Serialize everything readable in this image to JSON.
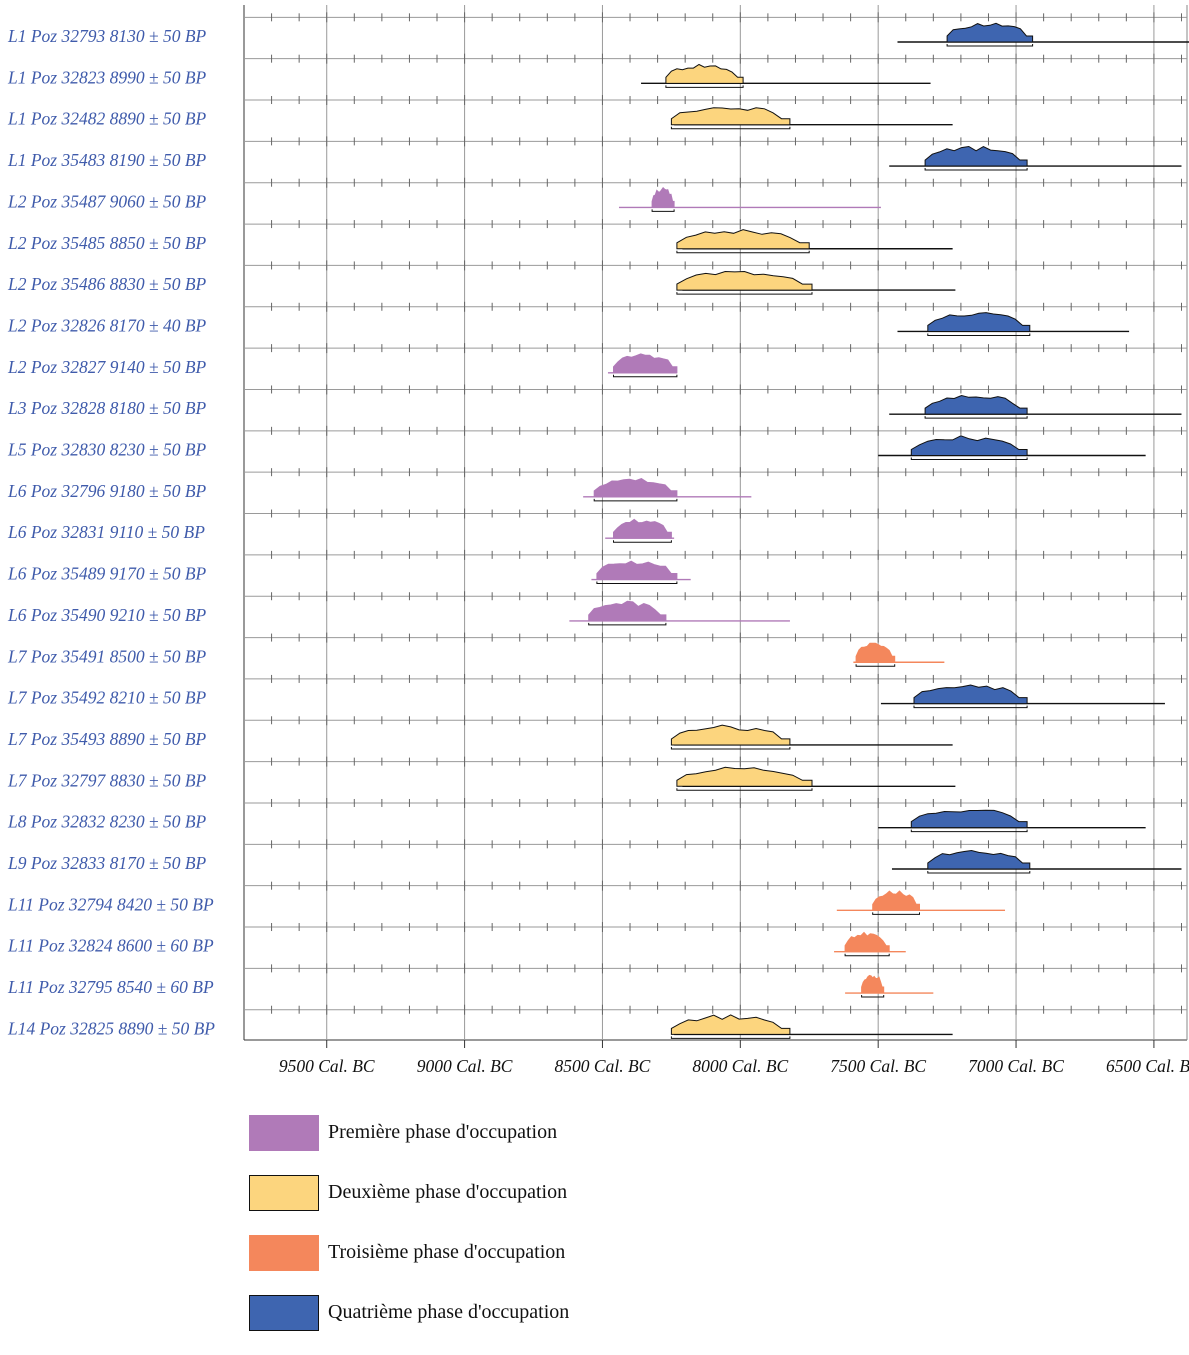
{
  "chart_data": {
    "type": "area",
    "title": "",
    "xlabel": "",
    "ylabel": "",
    "x_unit": "Cal. BC",
    "xlim": [
      9800,
      6380
    ],
    "ticks": [
      {
        "value": 9500,
        "label": "9500 Cal. BC"
      },
      {
        "value": 9000,
        "label": "9000 Cal. BC"
      },
      {
        "value": 8500,
        "label": "8500 Cal. BC"
      },
      {
        "value": 8000,
        "label": "8000 Cal. BC"
      },
      {
        "value": 7500,
        "label": "7500 Cal. BC"
      },
      {
        "value": 7000,
        "label": "7000 Cal. BC"
      },
      {
        "value": 6500,
        "label": "6500 Cal. BC"
      }
    ],
    "grid": true,
    "legend_position": "bottom",
    "phases": [
      {
        "label": "Première phase d'occupation",
        "color": "#b07ab8",
        "stroke": "#b07ab8"
      },
      {
        "label": "Deuxième phase d'occupation",
        "color": "#fcd57e",
        "stroke": "#111111"
      },
      {
        "label": "Troisième phase d'occupation",
        "color": "#f4875c",
        "stroke": "#f4875c"
      },
      {
        "label": "Quatrième phase d'occupation",
        "color": "#3e65b0",
        "stroke": "#111111"
      }
    ],
    "series": [
      {
        "label": "L1 Poz 32793  8130 ± 50 BP",
        "phase": 4,
        "range": [
          7430,
          6360
        ],
        "hpd": [
          7250,
          6940
        ]
      },
      {
        "label": "L1 Poz 32823  8990 ± 50 BP",
        "phase": 2,
        "range": [
          8360,
          7310
        ],
        "hpd": [
          8270,
          7990
        ]
      },
      {
        "label": "L1 Poz 32482  8890 ± 50 BP",
        "phase": 2,
        "range": [
          8240,
          7230
        ],
        "hpd": [
          8250,
          7820
        ]
      },
      {
        "label": "L1 Poz 35483  8190 ± 50 BP",
        "phase": 4,
        "range": [
          7460,
          6400
        ],
        "hpd": [
          7330,
          6960
        ]
      },
      {
        "label": "L2 Poz 35487  9060 ± 50 BP",
        "phase": 1,
        "range": [
          8440,
          7490
        ],
        "hpd": [
          8320,
          8240
        ]
      },
      {
        "label": "L2 Poz 35485  8850 ± 50 BP",
        "phase": 2,
        "range": [
          8210,
          7230
        ],
        "hpd": [
          8230,
          7750
        ]
      },
      {
        "label": "L2 Poz 35486  8830 ± 50 BP",
        "phase": 2,
        "range": [
          8210,
          7220
        ],
        "hpd": [
          8230,
          7740
        ]
      },
      {
        "label": "L2 Poz 32826  8170 ± 40 BP",
        "phase": 4,
        "range": [
          7430,
          6590
        ],
        "hpd": [
          7320,
          6950
        ]
      },
      {
        "label": "L2 Poz 32827  9140 ± 50 BP",
        "phase": 1,
        "range": [
          8480,
          8230
        ],
        "hpd": [
          8460,
          8230
        ]
      },
      {
        "label": "L3 Poz 32828  8180 ± 50 BP",
        "phase": 4,
        "range": [
          7460,
          6400
        ],
        "hpd": [
          7330,
          6960
        ]
      },
      {
        "label": "L5 Poz 32830  8230 ± 50 BP",
        "phase": 4,
        "range": [
          7500,
          6530
        ],
        "hpd": [
          7380,
          6960
        ]
      },
      {
        "label": "L6 Poz 32796  9180 ± 50 BP",
        "phase": 1,
        "range": [
          8570,
          7960
        ],
        "hpd": [
          8530,
          8230
        ]
      },
      {
        "label": "L6 Poz 32831  9110 ± 50 BP",
        "phase": 1,
        "range": [
          8490,
          8240
        ],
        "hpd": [
          8460,
          8250
        ]
      },
      {
        "label": "L6 Poz 35489  9170 ± 50 BP",
        "phase": 1,
        "range": [
          8540,
          8180
        ],
        "hpd": [
          8520,
          8230
        ]
      },
      {
        "label": "L6 Poz 35490  9210 ± 50 BP",
        "phase": 1,
        "range": [
          8620,
          7820
        ],
        "hpd": [
          8550,
          8270
        ]
      },
      {
        "label": "L7 Poz 35491  8500 ± 50 BP",
        "phase": 3,
        "range": [
          7590,
          7260
        ],
        "hpd": [
          7580,
          7440
        ]
      },
      {
        "label": "L7 Poz 35492  8210 ± 50 BP",
        "phase": 4,
        "range": [
          7490,
          6460
        ],
        "hpd": [
          7370,
          6960
        ]
      },
      {
        "label": "L7 Poz 35493  8890 ± 50 BP",
        "phase": 2,
        "range": [
          8240,
          7230
        ],
        "hpd": [
          8250,
          7820
        ]
      },
      {
        "label": "L7 Poz 32797  8830 ± 50 BP",
        "phase": 2,
        "range": [
          8210,
          7220
        ],
        "hpd": [
          8230,
          7740
        ]
      },
      {
        "label": "L8 Poz 32832  8230 ± 50 BP",
        "phase": 4,
        "range": [
          7500,
          6530
        ],
        "hpd": [
          7380,
          6960
        ]
      },
      {
        "label": "L9 Poz 32833  8170 ± 50 BP",
        "phase": 4,
        "range": [
          7450,
          6400
        ],
        "hpd": [
          7320,
          6950
        ]
      },
      {
        "label": "L11 Poz 32794  8420 ± 50 BP",
        "phase": 3,
        "range": [
          7650,
          7040
        ],
        "hpd": [
          7520,
          7350
        ]
      },
      {
        "label": "L11 Poz 32824  8600 ± 60 BP",
        "phase": 3,
        "range": [
          7660,
          7400
        ],
        "hpd": [
          7620,
          7460
        ]
      },
      {
        "label": "L11 Poz 32795  8540 ± 60 BP",
        "phase": 3,
        "range": [
          7620,
          7300
        ],
        "hpd": [
          7560,
          7480
        ]
      },
      {
        "label": "L14 Poz 32825  8890 ± 50 BP",
        "phase": 2,
        "range": [
          8240,
          7230
        ],
        "hpd": [
          8250,
          7820
        ]
      }
    ]
  }
}
